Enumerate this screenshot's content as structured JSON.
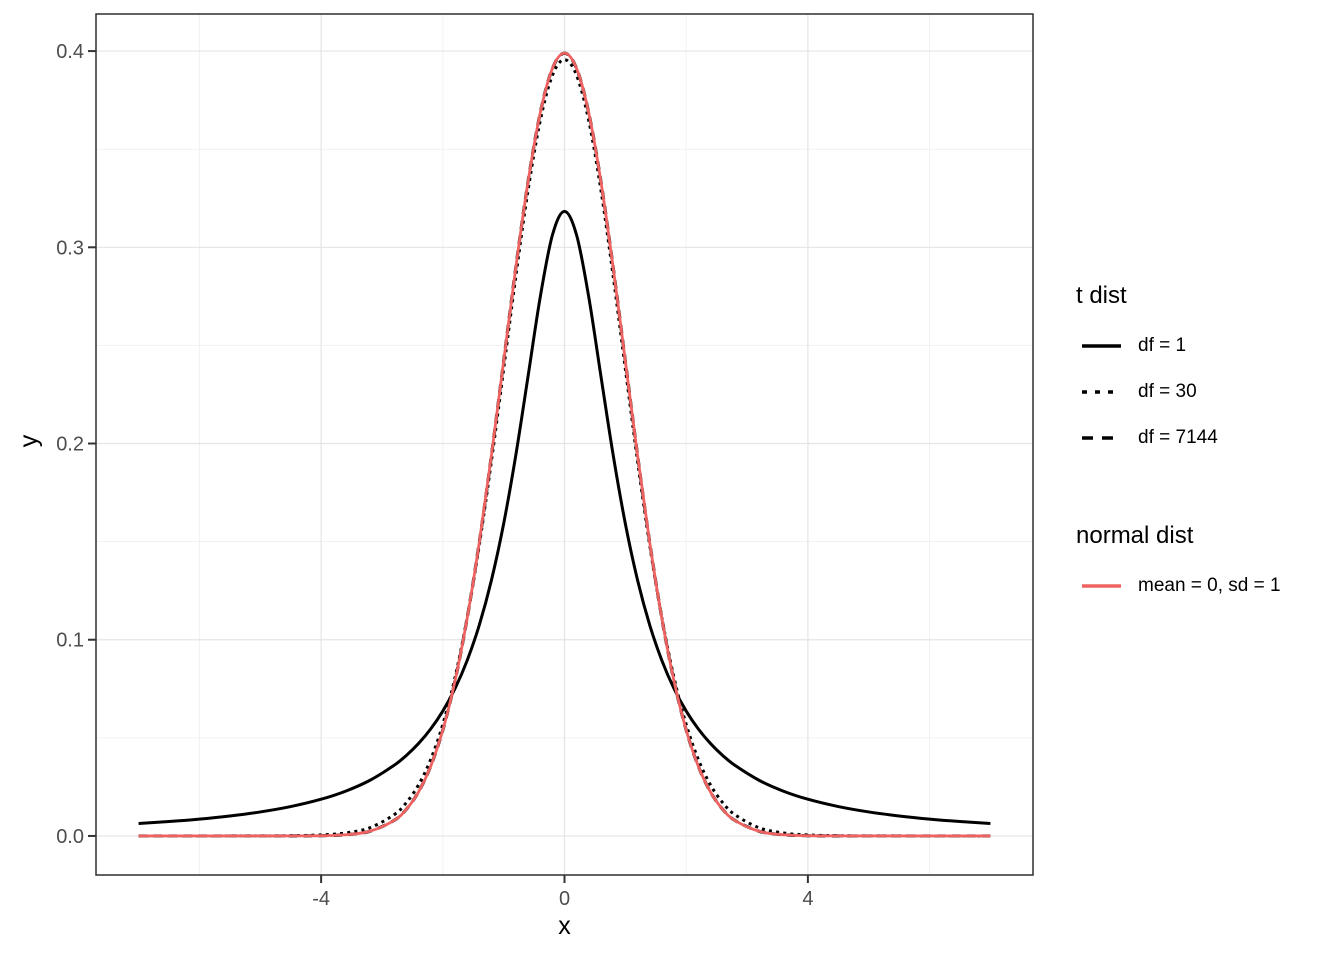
{
  "figure": {
    "background": "#FFFFFF",
    "panel_border_color": "#2F2F2F",
    "grid_major_color": "#E4E4E4",
    "grid_minor_color": "#F1F1F1",
    "tick_color": "#333333",
    "tick_label_color": "#4D4D4D",
    "axis_title_color": "#000000"
  },
  "chart_data": {
    "type": "line",
    "title": "",
    "xlabel": "x",
    "ylabel": "y",
    "xlim": [
      -7.7,
      7.7
    ],
    "ylim": [
      -0.0199,
      0.4189
    ],
    "grid": true,
    "x_ticks": {
      "values": [
        -4,
        0,
        4
      ],
      "labels": [
        "-4",
        "0",
        "4"
      ],
      "minor": [
        -6,
        -2,
        2,
        6
      ]
    },
    "y_ticks": {
      "values": [
        0,
        0.1,
        0.2,
        0.3,
        0.4
      ],
      "labels": [
        "0.0",
        "0.1",
        "0.2",
        "0.3",
        "0.4"
      ],
      "minor": [
        0.05,
        0.15,
        0.25,
        0.35
      ]
    },
    "x": [
      -7,
      -6.5,
      -6,
      -5.5,
      -5,
      -4.5,
      -4,
      -3.6,
      -3.2,
      -2.8,
      -2.6,
      -2.4,
      -2.2,
      -2,
      -1.8,
      -1.6,
      -1.4,
      -1.2,
      -1,
      -0.8,
      -0.6,
      -0.4,
      -0.2,
      0,
      0.2,
      0.4,
      0.6,
      0.8,
      1,
      1.2,
      1.4,
      1.6,
      1.8,
      2,
      2.2,
      2.4,
      2.6,
      2.8,
      3.2,
      3.6,
      4,
      4.5,
      5,
      5.5,
      6,
      6.5,
      7
    ],
    "series": [
      {
        "name": "df = 1",
        "group": "t dist",
        "color": "#000000",
        "linetype": "solid",
        "width": 3,
        "values": [
          0.00637,
          0.00736,
          0.0086,
          0.01019,
          0.01224,
          0.01498,
          0.01872,
          0.0228,
          0.02832,
          0.03601,
          0.04102,
          0.04709,
          0.0545,
          0.06366,
          0.07508,
          0.08942,
          0.10753,
          0.13045,
          0.15915,
          0.19409,
          0.23405,
          0.27441,
          0.30607,
          0.31831,
          0.30607,
          0.27441,
          0.23405,
          0.19409,
          0.15915,
          0.13045,
          0.10753,
          0.08942,
          0.07508,
          0.06366,
          0.0545,
          0.04709,
          0.04102,
          0.03601,
          0.02832,
          0.0228,
          0.01872,
          0.01498,
          0.01224,
          0.01019,
          0.0086,
          0.00736,
          0.00637
        ]
      },
      {
        "name": "df = 30",
        "group": "t dist",
        "color": "#000000",
        "linetype": "dotted",
        "width": 3,
        "values": [
          0,
          0,
          0,
          1e-05,
          3e-05,
          0.00013,
          0.00053,
          0.00151,
          0.00417,
          0.01083,
          0.01696,
          0.02597,
          0.03893,
          0.05686,
          0.08069,
          0.1112,
          0.14835,
          0.19129,
          0.238,
          0.28523,
          0.32885,
          0.36432,
          0.38754,
          0.39563,
          0.38754,
          0.36432,
          0.32885,
          0.28523,
          0.238,
          0.19129,
          0.14835,
          0.1112,
          0.08069,
          0.05686,
          0.03893,
          0.02597,
          0.01696,
          0.01083,
          0.00417,
          0.00151,
          0.00053,
          0.00013,
          3e-05,
          1e-05,
          0,
          0,
          0
        ]
      },
      {
        "name": "df = 7144",
        "group": "t dist",
        "color": "#000000",
        "linetype": "dashed",
        "width": 3.2,
        "values": [
          0,
          0,
          0,
          0,
          0,
          2e-05,
          0.00013,
          0.00061,
          0.00238,
          0.00792,
          0.01358,
          0.0224,
          0.03548,
          0.054,
          0.07896,
          0.11093,
          0.14974,
          0.19419,
          0.24197,
          0.28969,
          0.33322,
          0.36826,
          0.39102,
          0.3989,
          0.39102,
          0.36826,
          0.33322,
          0.28969,
          0.24197,
          0.19419,
          0.14974,
          0.11093,
          0.07896,
          0.054,
          0.03548,
          0.0224,
          0.01358,
          0.00792,
          0.00238,
          0.00061,
          0.00013,
          2e-05,
          0,
          0,
          0,
          0,
          0
        ]
      },
      {
        "name": "mean = 0, sd = 1",
        "group": "normal dist",
        "color": "#EE6361",
        "linetype": "solid",
        "width": 2.8,
        "values": [
          0,
          0,
          0,
          0,
          0,
          2e-05,
          0.00013,
          0.00061,
          0.00238,
          0.00792,
          0.01358,
          0.02239,
          0.03547,
          0.05399,
          0.07895,
          0.11092,
          0.14973,
          0.19419,
          0.24197,
          0.28969,
          0.33322,
          0.36827,
          0.39104,
          0.39894,
          0.39104,
          0.36827,
          0.33322,
          0.28969,
          0.24197,
          0.19419,
          0.14973,
          0.11092,
          0.07895,
          0.05399,
          0.03547,
          0.02239,
          0.01358,
          0.00792,
          0.00238,
          0.00061,
          0.00013,
          2e-05,
          0,
          0,
          0,
          0,
          0
        ]
      }
    ],
    "legend": {
      "position": "right",
      "groups": [
        {
          "title": "t dist",
          "items": [
            {
              "label": "df = 1",
              "linetype": "solid",
              "color": "#000000"
            },
            {
              "label": "df = 30",
              "linetype": "dotted",
              "color": "#000000"
            },
            {
              "label": "df = 7144",
              "linetype": "dashed",
              "color": "#000000"
            }
          ]
        },
        {
          "title": "normal dist",
          "items": [
            {
              "label": "mean = 0, sd = 1",
              "linetype": "solid",
              "color": "#EE6361"
            }
          ]
        }
      ]
    }
  }
}
